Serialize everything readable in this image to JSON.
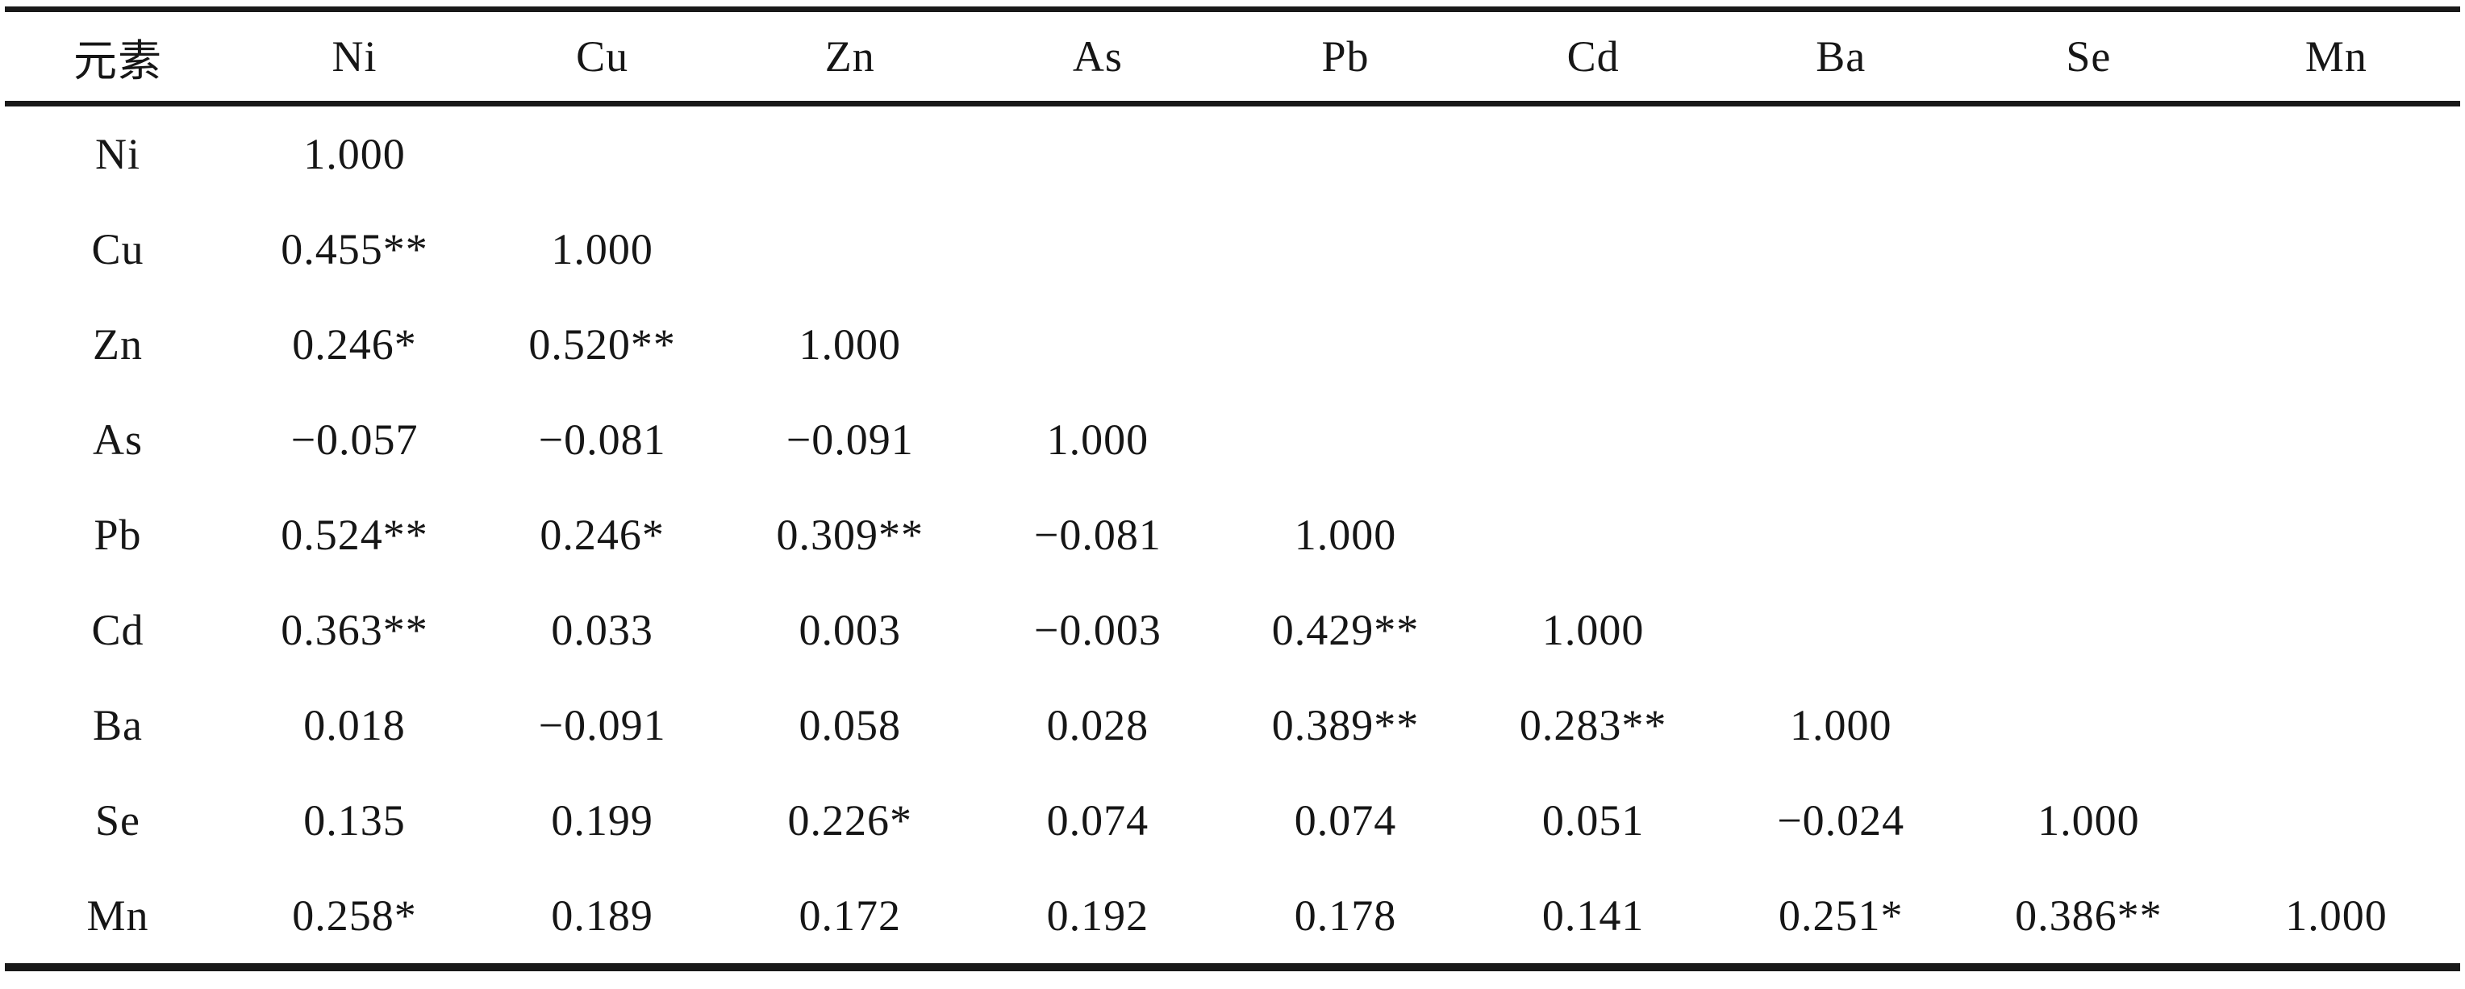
{
  "table": {
    "header": [
      "元素",
      "Ni",
      "Cu",
      "Zn",
      "As",
      "Pb",
      "Cd",
      "Ba",
      "Se",
      "Mn"
    ],
    "rows": [
      {
        "label": "Ni",
        "values": [
          "1.000",
          "",
          "",
          "",
          "",
          "",
          "",
          "",
          ""
        ]
      },
      {
        "label": "Cu",
        "values": [
          "0.455**",
          "1.000",
          "",
          "",
          "",
          "",
          "",
          "",
          ""
        ]
      },
      {
        "label": "Zn",
        "values": [
          "0.246*",
          "0.520**",
          "1.000",
          "",
          "",
          "",
          "",
          "",
          ""
        ]
      },
      {
        "label": "As",
        "values": [
          "−0.057",
          "−0.081",
          "−0.091",
          "1.000",
          "",
          "",
          "",
          "",
          ""
        ]
      },
      {
        "label": "Pb",
        "values": [
          "0.524**",
          "0.246*",
          "0.309**",
          "−0.081",
          "1.000",
          "",
          "",
          "",
          ""
        ]
      },
      {
        "label": "Cd",
        "values": [
          "0.363**",
          "0.033",
          "0.003",
          "−0.003",
          "0.429**",
          "1.000",
          "",
          "",
          ""
        ]
      },
      {
        "label": "Ba",
        "values": [
          "0.018",
          "−0.091",
          "0.058",
          "0.028",
          "0.389**",
          "0.283**",
          "1.000",
          "",
          ""
        ]
      },
      {
        "label": "Se",
        "values": [
          "0.135",
          "0.199",
          "0.226*",
          "0.074",
          "0.074",
          "0.051",
          "−0.024",
          "1.000",
          ""
        ]
      },
      {
        "label": "Mn",
        "values": [
          "0.258*",
          "0.189",
          "0.172",
          "0.192",
          "0.178",
          "0.141",
          "0.251*",
          "0.386**",
          "1.000"
        ]
      }
    ],
    "colors": {
      "rule": "#191919",
      "text": "#161616",
      "background": "#ffffff"
    }
  }
}
